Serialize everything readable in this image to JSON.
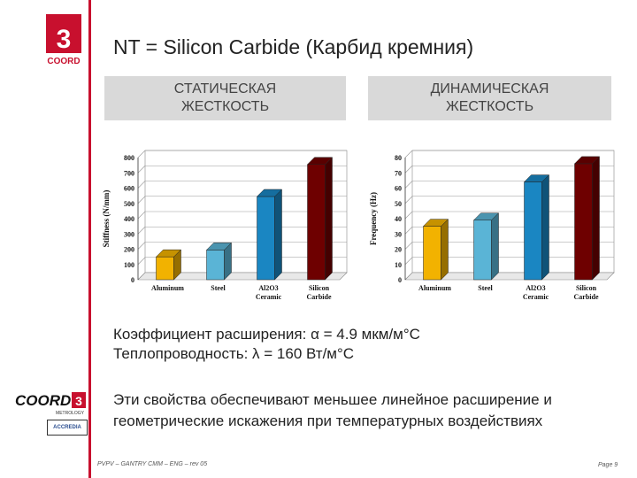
{
  "title": "NT = Silicon Carbide (Карбид кремния)",
  "panels": {
    "left": [
      "СТАТИЧЕСКАЯ",
      "ЖЕСТКОСТЬ"
    ],
    "right": [
      "ДИНАМИЧЕСКАЯ",
      "ЖЕСТКОСТЬ"
    ]
  },
  "info": {
    "line1": "Коэффициент расширения: α = 4.9 мкм/м°С",
    "line2": "Теплопроводность: λ = 160 Вт/м°С"
  },
  "note": {
    "line1": "Эти свойства обеспечивают меньшее линейное расширение и",
    "line2": "геометрические искажения при температурных воздействиях"
  },
  "footer": {
    "left": "PVPV – GANTRY CMM – ENG – rev 05",
    "right": "Page 9"
  },
  "logos": {
    "top_text": "COORD",
    "top_number": "3",
    "bottom_text": "COORD",
    "bottom_sub": "METROLOGY",
    "accred_text": "ACCREDIA"
  },
  "colors": {
    "accent_red": "#c8102e",
    "bar_aluminum": "#f2b200",
    "bar_steel": "#5ab4d6",
    "bar_ceramic": "#1a86c2",
    "bar_sic": "#6e0000"
  },
  "chart_data": [
    {
      "type": "bar",
      "categories": [
        "Aluminum",
        "Steel",
        "Al2O3 Ceramic",
        "Silicon Carbide"
      ],
      "category_lines": [
        [
          "Aluminum"
        ],
        [
          "Steel"
        ],
        [
          "Al2O3",
          "Ceramic"
        ],
        [
          "Silicon",
          "Carbide"
        ]
      ],
      "values": [
        150,
        195,
        545,
        755
      ],
      "ylabel": "Stiffness (N/mm)",
      "yticks": [
        0,
        100,
        200,
        300,
        400,
        500,
        600,
        700,
        800
      ],
      "ylim": [
        0,
        800
      ],
      "grid": true
    },
    {
      "type": "bar",
      "categories": [
        "Aluminum",
        "Steel",
        "Al2O3 Ceramic",
        "Silicon Carbide"
      ],
      "category_lines": [
        [
          "Aluminum"
        ],
        [
          "Steel"
        ],
        [
          "Al2O3",
          "Ceramic"
        ],
        [
          "Silicon",
          "Carbide"
        ]
      ],
      "values": [
        35,
        39,
        64,
        76
      ],
      "ylabel": "Frequency (Hz)",
      "yticks": [
        0,
        10,
        20,
        30,
        40,
        50,
        60,
        70,
        80
      ],
      "ylim": [
        0,
        80
      ],
      "grid": true
    }
  ]
}
